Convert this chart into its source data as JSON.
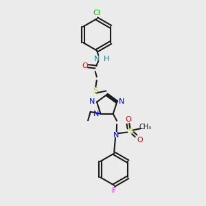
{
  "bg_color": "#ebebeb",
  "bond_color": "#1a1a1a",
  "colors": {
    "N": "#0000ff",
    "O": "#ff0000",
    "S": "#cccc00",
    "Cl": "#00bb00",
    "F": "#ff00ff",
    "NH": "#008080",
    "C": "#1a1a1a"
  },
  "lw": 1.5,
  "fs": 8.0
}
